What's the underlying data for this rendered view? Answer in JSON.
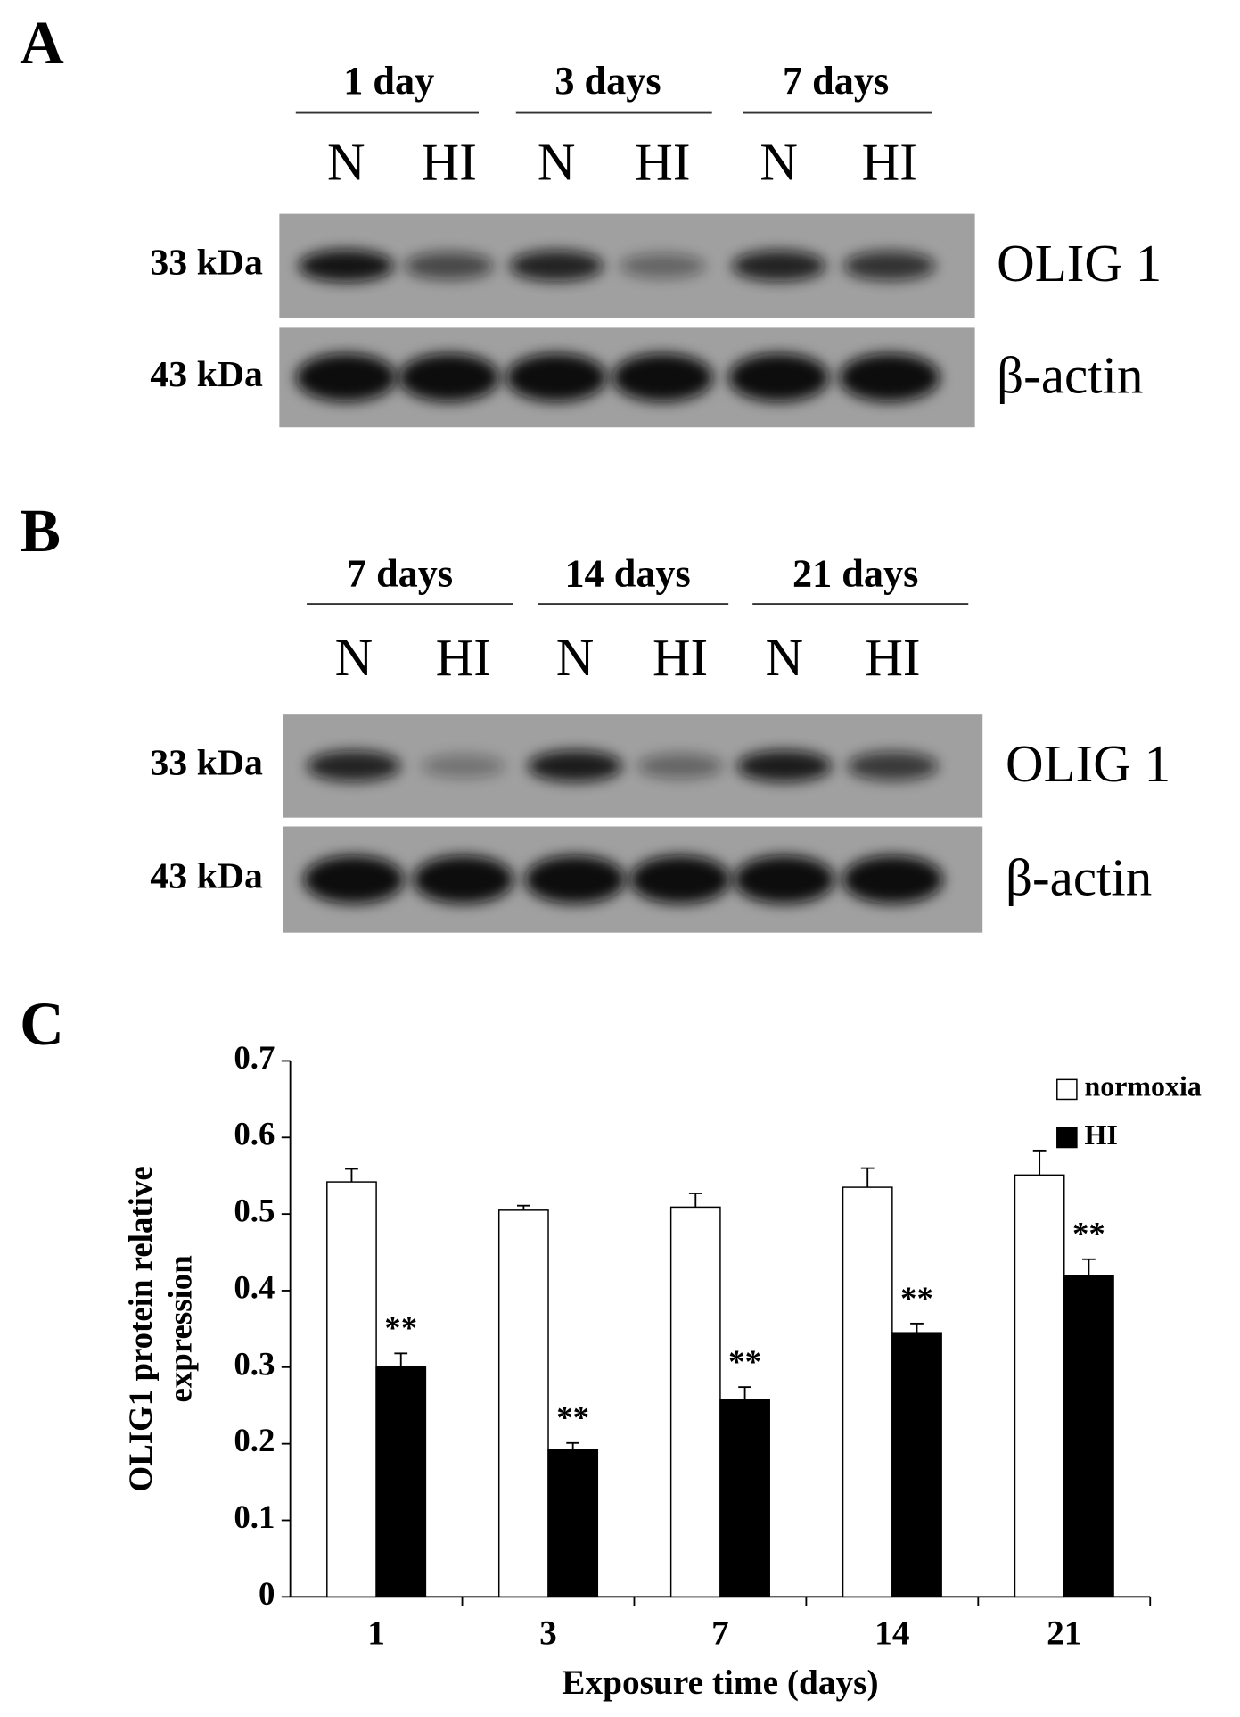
{
  "panels": [
    {
      "label": "A",
      "groups": [
        "1 day",
        "3 days",
        "7 days"
      ],
      "lanes": [
        "N",
        "HI",
        "N",
        "HI",
        "N",
        "HI"
      ],
      "rows": [
        {
          "mw": "33 kDa",
          "protein": "OLIG 1"
        },
        {
          "mw": "43 kDa",
          "protein": "β-actin"
        }
      ]
    },
    {
      "label": "B",
      "groups": [
        "7 days",
        "14 days",
        "21 days"
      ],
      "lanes": [
        "N",
        "HI",
        "N",
        "HI",
        "N",
        "HI"
      ],
      "rows": [
        {
          "mw": "33 kDa",
          "protein": "OLIG 1"
        },
        {
          "mw": "43 kDa",
          "protein": "β-actin"
        }
      ]
    }
  ],
  "chart_data": {
    "type": "bar",
    "panel_label": "C",
    "ylabel": [
      "OLIG1 protein relative",
      "expression"
    ],
    "xlabel": "Exposure time (days)",
    "categories": [
      "1",
      "3",
      "7",
      "14",
      "21"
    ],
    "series": [
      {
        "name": "normoxia",
        "color": "#ffffff",
        "values": [
          0.542,
          0.505,
          0.509,
          0.535,
          0.551
        ],
        "errors": [
          0.017,
          0.006,
          0.018,
          0.025,
          0.032
        ]
      },
      {
        "name": "HI",
        "color": "#000000",
        "values": [
          0.301,
          0.192,
          0.257,
          0.345,
          0.42
        ],
        "errors": [
          0.017,
          0.009,
          0.017,
          0.012,
          0.021
        ],
        "annotations": [
          "**",
          "**",
          "**",
          "**",
          "**"
        ]
      }
    ],
    "ylim": [
      0,
      0.7
    ],
    "yticks": [
      0,
      0.1,
      0.2,
      0.3,
      0.4,
      0.5,
      0.6,
      0.7
    ],
    "legend": "upper right"
  }
}
